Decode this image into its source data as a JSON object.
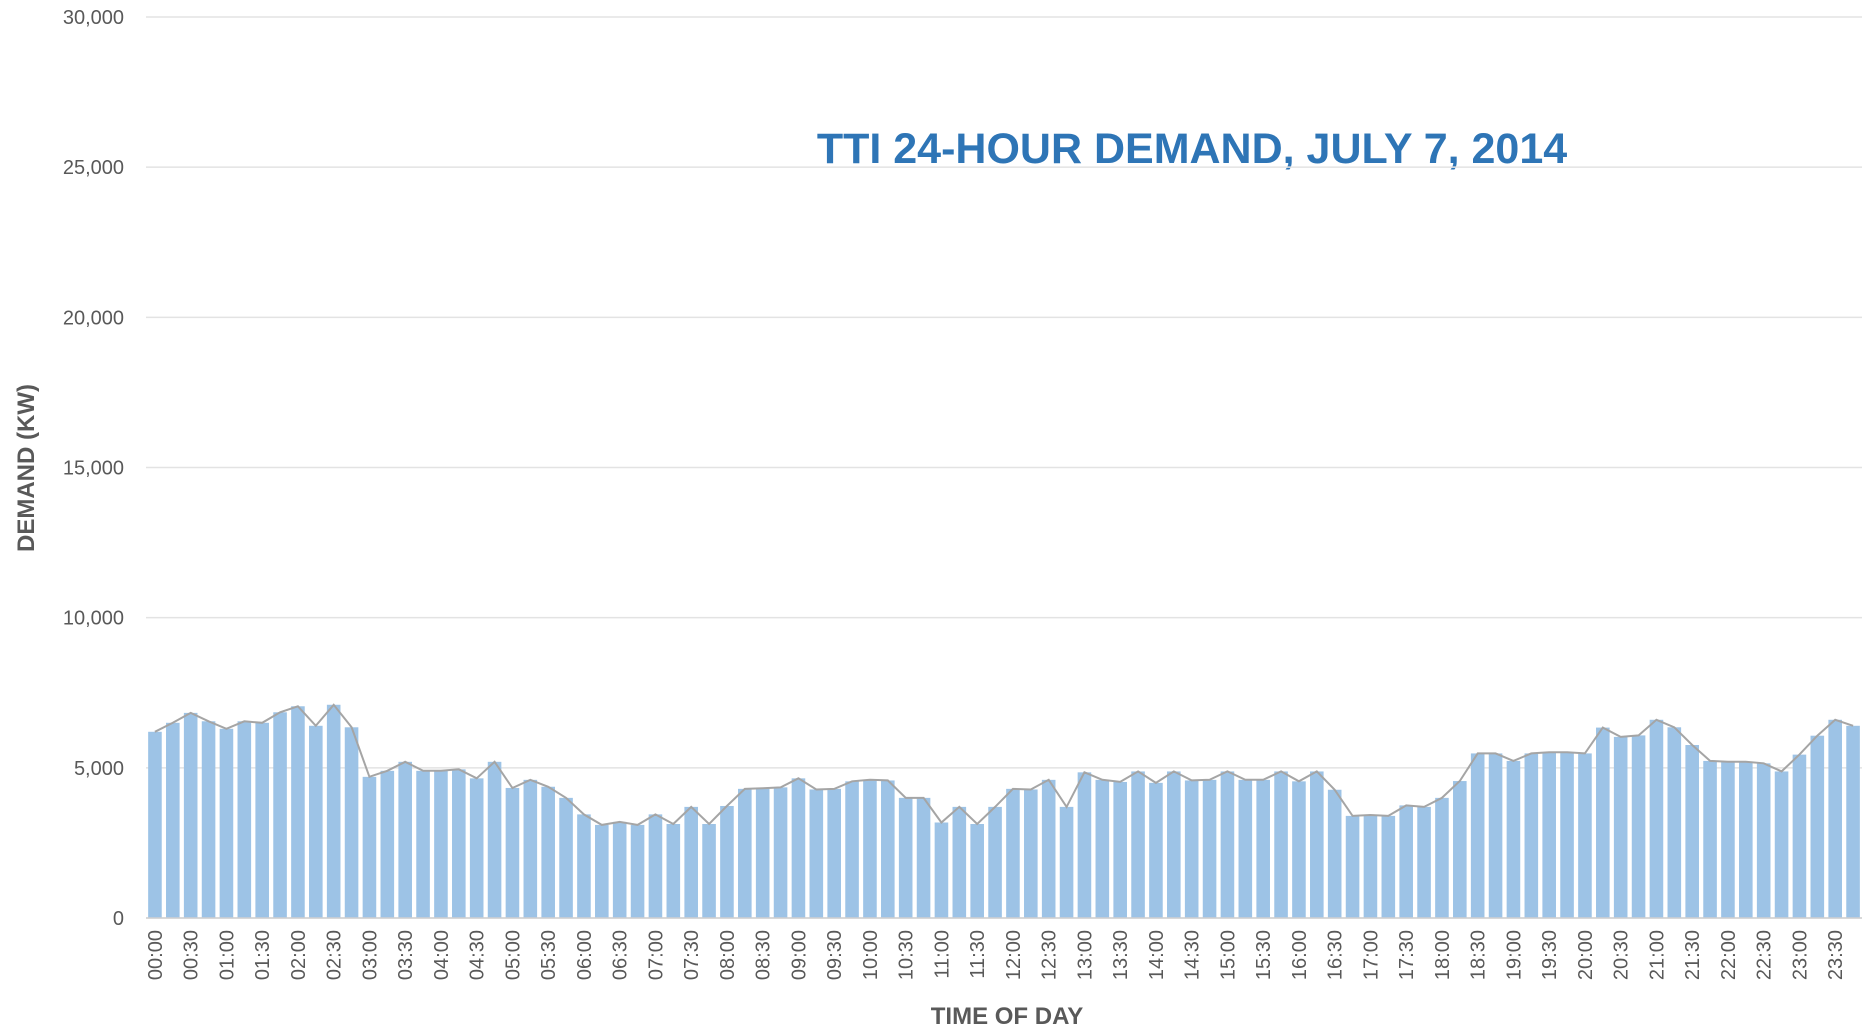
{
  "chart_data": {
    "type": "bar",
    "title": "TTI 24-HOUR DEMAND, JULY 7, 2014",
    "xlabel": "TIME OF DAY",
    "ylabel": "DEMAND (KW)",
    "categories": [
      "00:00",
      null,
      "00:30",
      null,
      "01:00",
      null,
      "01:30",
      null,
      "02:00",
      null,
      "02:30",
      null,
      "03:00",
      null,
      "03:30",
      null,
      "04:00",
      null,
      "04:30",
      null,
      "05:00",
      null,
      "05:30",
      null,
      "06:00",
      null,
      "06:30",
      null,
      "07:00",
      null,
      "07:30",
      null,
      "08:00",
      null,
      "08:30",
      null,
      "09:00",
      null,
      "09:30",
      null,
      "10:00",
      null,
      "10:30",
      null,
      "11:00",
      null,
      "11:30",
      null,
      "12:00",
      null,
      "12:30",
      null,
      "13:00",
      null,
      "13:30",
      null,
      "14:00",
      null,
      "14:30",
      null,
      "15:00",
      null,
      "15:30",
      null,
      "16:00",
      null,
      "16:30",
      null,
      "17:00",
      null,
      "17:30",
      null,
      "18:00",
      null,
      "18:30",
      null,
      "19:00",
      null,
      "19:30",
      null,
      "20:00",
      null,
      "20:30",
      null,
      "21:00",
      null,
      "21:30",
      null,
      "22:00",
      null,
      "22:30",
      null,
      "23:00",
      null,
      "23:30",
      null
    ],
    "values": [
      6200,
      6500,
      6830,
      6550,
      6300,
      6550,
      6500,
      6850,
      7050,
      6400,
      7100,
      6350,
      4700,
      4900,
      5200,
      4900,
      4900,
      4950,
      4650,
      5200,
      4330,
      4600,
      4370,
      4000,
      3450,
      3100,
      3200,
      3100,
      3450,
      3130,
      3700,
      3130,
      3730,
      4300,
      4320,
      4350,
      4650,
      4280,
      4300,
      4550,
      4600,
      4580,
      4000,
      4000,
      3180,
      3700,
      3130,
      3700,
      4300,
      4280,
      4600,
      3700,
      4850,
      4600,
      4530,
      4880,
      4500,
      4880,
      4580,
      4600,
      4880,
      4600,
      4600,
      4880,
      4550,
      4880,
      4270,
      3400,
      3430,
      3400,
      3750,
      3700,
      4000,
      4560,
      5480,
      5480,
      5230,
      5480,
      5520,
      5520,
      5480,
      6340,
      6030,
      6080,
      6600,
      6350,
      5760,
      5230,
      5200,
      5200,
      5150,
      4880,
      5440,
      6070,
      6600,
      6400
    ],
    "color": "#9dc3e6",
    "line_color": "#a5a5a5",
    "ylim": [
      0,
      30000
    ],
    "yticks": [
      0,
      {
        "value": 5000,
        "label": "5,000"
      },
      {
        "value": 10000,
        "label": "10,000"
      },
      {
        "value": 15000,
        "label": "15,000"
      },
      {
        "value": 20000,
        "label": "20,000"
      },
      {
        "value": 25000,
        "label": "25,000"
      },
      {
        "value": 30000,
        "label": "30,000"
      }
    ],
    "grid": true
  }
}
